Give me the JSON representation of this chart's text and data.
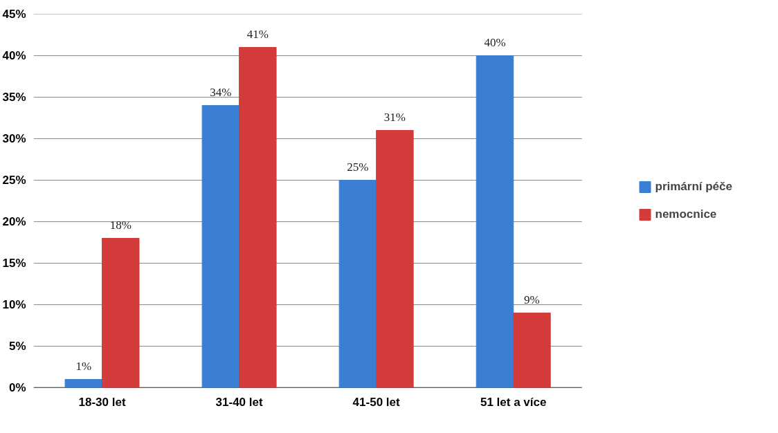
{
  "chart_data": {
    "type": "bar",
    "categories": [
      "18-30 let",
      "31-40 let",
      "41-50 let",
      "51 let a více"
    ],
    "series": [
      {
        "name": "primární péče",
        "color": "#3b7fd4",
        "values": [
          1,
          34,
          25,
          40
        ],
        "value_labels": [
          "1%",
          "34%",
          "25%",
          "40%"
        ]
      },
      {
        "name": "nemocnice",
        "color": "#d43b3b",
        "values": [
          18,
          41,
          31,
          9
        ],
        "value_labels": [
          "18%",
          "41%",
          "31%",
          "9%"
        ]
      }
    ],
    "ylim": [
      0,
      45
    ],
    "yticks": [
      {
        "value": 0,
        "label": "0%"
      },
      {
        "value": 5,
        "label": "5%"
      },
      {
        "value": 10,
        "label": "10%"
      },
      {
        "value": 15,
        "label": "15%"
      },
      {
        "value": 20,
        "label": "20%"
      },
      {
        "value": 25,
        "label": "25%"
      },
      {
        "value": 30,
        "label": "30%"
      },
      {
        "value": 35,
        "label": "35%"
      },
      {
        "value": 40,
        "label": "40%"
      },
      {
        "value": 45,
        "label": "45%"
      }
    ],
    "grid": "y",
    "legend": "right"
  }
}
